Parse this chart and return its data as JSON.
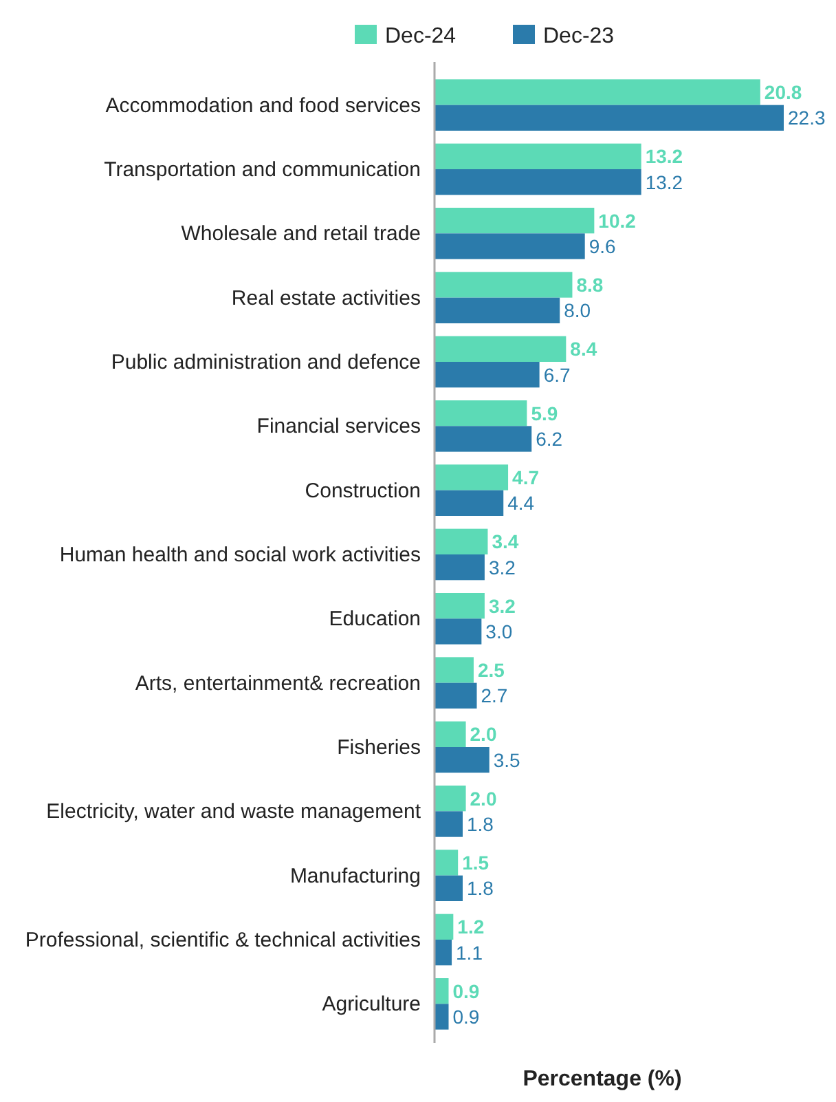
{
  "chart_data": {
    "type": "bar",
    "orientation": "horizontal",
    "xlabel": "Percentage (%)",
    "categories": [
      "Accommodation and food services",
      "Transportation and communication",
      "Wholesale and retail trade",
      "Real estate activities",
      "Public administration and defence",
      "Financial services",
      "Construction",
      "Human health and social work activities",
      "Education",
      "Arts, entertainment& recreation",
      "Fisheries",
      "Electricity, water and waste management",
      "Manufacturing",
      "Professional, scientific & technical activities",
      "Agriculture"
    ],
    "series": [
      {
        "name": "Dec-24",
        "color": "#5cdab6",
        "values": [
          20.8,
          13.2,
          10.2,
          8.8,
          8.4,
          5.9,
          4.7,
          3.4,
          3.2,
          2.5,
          2.0,
          2.0,
          1.5,
          1.2,
          0.9
        ],
        "value_labels": [
          "20.8",
          "13.2",
          "10.2",
          "8.8",
          "8.4",
          "5.9",
          "4.7",
          "3.4",
          "3.2",
          "2.5",
          "2.0",
          "2.0",
          "1.5",
          "1.2",
          "0.9"
        ]
      },
      {
        "name": "Dec-23",
        "color": "#2b7bab",
        "values": [
          22.3,
          13.2,
          9.6,
          8.0,
          6.7,
          6.2,
          4.4,
          3.2,
          3.0,
          2.7,
          3.5,
          1.8,
          1.8,
          1.1,
          0.9
        ],
        "value_labels": [
          "22.3",
          "13.2",
          "9.6",
          "8.0",
          "6.7",
          "6.2",
          "4.4",
          "3.2",
          "3.0",
          "2.7",
          "3.5",
          "1.8",
          "1.8",
          "1.1",
          "0.9"
        ]
      }
    ],
    "legend": "top"
  }
}
